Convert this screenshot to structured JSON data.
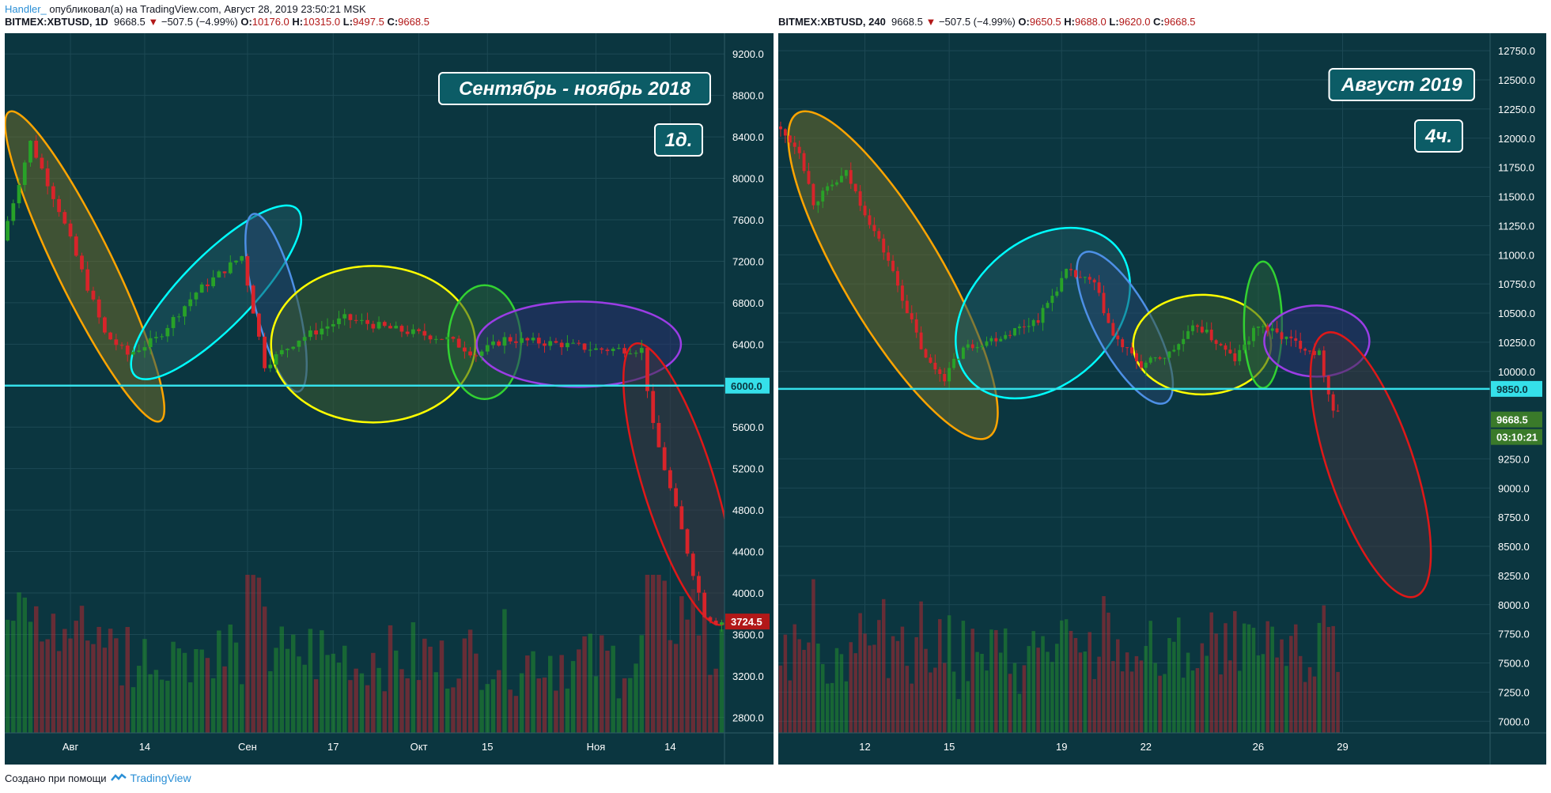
{
  "top_line": {
    "author": "Handler_",
    "text": " опубликовал(а) на TradingView.com, Август 28, 2019 23:50:21 MSK"
  },
  "footer": {
    "text": "Создано при помощи",
    "brand": "TradingView"
  },
  "colors": {
    "bg": "#0b3640",
    "grid": "#1d4954",
    "up": "#28a228",
    "down": "#d8242a",
    "level": "#35e0ea",
    "axis_text": "#ffffff"
  },
  "chart_data": [
    {
      "type": "candlestick",
      "header": {
        "symbol": "BITMEX:XBTUSD, 1D",
        "last": "9668.5",
        "change": "−507.5 (−4.99%)",
        "o_label": "O:",
        "o": "10176.0",
        "h_label": "H:",
        "h": "10315.0",
        "l_label": "L:",
        "l": "9497.5",
        "c_label": "C:",
        "c": "9668.5"
      },
      "title": "Сентябрь - ноябрь 2018",
      "timeframe_badge": "1д.",
      "ylim": [
        2650,
        9400
      ],
      "y_ticks": [
        "9200.0",
        "8800.0",
        "8400.0",
        "8000.0",
        "7600.0",
        "7200.0",
        "6800.0",
        "6400.0",
        "6000.0",
        "5600.0",
        "5200.0",
        "4800.0",
        "4400.0",
        "4000.0",
        "3600.0",
        "3200.0",
        "2800.0"
      ],
      "x_ticks": [
        {
          "label": "Авг",
          "i": 11
        },
        {
          "label": "14",
          "i": 24
        },
        {
          "label": "Сен",
          "i": 42
        },
        {
          "label": "17",
          "i": 57
        },
        {
          "label": "Окт",
          "i": 72
        },
        {
          "label": "15",
          "i": 84
        },
        {
          "label": "Ноя",
          "i": 103
        },
        {
          "label": "14",
          "i": 116
        }
      ],
      "n_candles": 126,
      "start_price": 7400,
      "anchors": [
        [
          0,
          7400
        ],
        [
          5,
          8350
        ],
        [
          10,
          7700
        ],
        [
          18,
          6500
        ],
        [
          22,
          6300
        ],
        [
          27,
          6450
        ],
        [
          34,
          6900
        ],
        [
          42,
          7250
        ],
        [
          46,
          6200
        ],
        [
          52,
          6450
        ],
        [
          60,
          6650
        ],
        [
          68,
          6550
        ],
        [
          78,
          6450
        ],
        [
          83,
          6300
        ],
        [
          88,
          6450
        ],
        [
          98,
          6400
        ],
        [
          104,
          6350
        ],
        [
          112,
          6350
        ],
        [
          114,
          5600
        ],
        [
          120,
          4400
        ],
        [
          123,
          3800
        ],
        [
          125,
          3724
        ]
      ],
      "horizontal_line": {
        "value": 6000,
        "label": "6000.0"
      },
      "last_price_label": {
        "value": 3724.5,
        "label": "3724.5"
      },
      "ellipses": [
        {
          "color": "orange",
          "fill": "#6b6a2a",
          "from": [
            2,
            8450
          ],
          "to": [
            25,
            5850
          ],
          "width": 4
        },
        {
          "color": "cyan",
          "fill": "#1f5760",
          "from": [
            25,
            6250
          ],
          "to": [
            48,
            7550
          ],
          "width": 5
        },
        {
          "color": "#4d90e6",
          "fill": "#24456b",
          "from": [
            44,
            7450
          ],
          "to": [
            50,
            6150
          ],
          "width": 3
        },
        {
          "color": "yellow",
          "fill": "#3d5a2e",
          "from": [
            50,
            6400
          ],
          "to": [
            78,
            6400
          ],
          "width": 11
        },
        {
          "color": "#32d232",
          "fill": "#285c38",
          "from": [
            81,
            6420
          ],
          "to": [
            86,
            6420
          ],
          "width": 8
        },
        {
          "color": "#9b3de5",
          "fill": "#2a2f6b",
          "from": [
            86,
            6400
          ],
          "to": [
            114,
            6400
          ],
          "width": 6
        },
        {
          "color": "#e01818",
          "fill": "#3d3440",
          "from": [
            111,
            6200
          ],
          "to": [
            124,
            3900
          ],
          "width": 5
        }
      ]
    },
    {
      "type": "candlestick",
      "header": {
        "symbol": "BITMEX:XBTUSD, 240",
        "last": "9668.5",
        "change": "−507.5 (−4.99%)",
        "o_label": "O:",
        "o": "9650.5",
        "h_label": "H:",
        "h": "9688.0",
        "l_label": "L:",
        "l": "9620.0",
        "c_label": "C:",
        "c": "9668.5"
      },
      "title": "Август 2019",
      "timeframe_badge": "4ч.",
      "ylim": [
        6900,
        12900
      ],
      "y_ticks": [
        "12750.0",
        "12500.0",
        "12250.0",
        "12000.0",
        "11750.0",
        "11500.0",
        "11250.0",
        "11000.0",
        "10750.0",
        "10500.0",
        "10250.0",
        "10000.0",
        "9250.0",
        "9000.0",
        "8750.0",
        "8500.0",
        "8250.0",
        "8000.0",
        "7750.0",
        "7500.0",
        "7250.0",
        "7000.0"
      ],
      "x_ticks": [
        {
          "label": "12",
          "i": 18
        },
        {
          "label": "15",
          "i": 36
        },
        {
          "label": "19",
          "i": 60
        },
        {
          "label": "22",
          "i": 78
        },
        {
          "label": "26",
          "i": 102
        },
        {
          "label": "29",
          "i": 120
        }
      ],
      "n_candles": 120,
      "start_price": 12100,
      "anchors": [
        [
          0,
          12100
        ],
        [
          5,
          11900
        ],
        [
          8,
          11450
        ],
        [
          15,
          11700
        ],
        [
          24,
          10950
        ],
        [
          32,
          10100
        ],
        [
          36,
          9950
        ],
        [
          40,
          10200
        ],
        [
          48,
          10300
        ],
        [
          56,
          10450
        ],
        [
          62,
          10850
        ],
        [
          68,
          10750
        ],
        [
          72,
          10300
        ],
        [
          78,
          10050
        ],
        [
          84,
          10150
        ],
        [
          90,
          10400
        ],
        [
          98,
          10100
        ],
        [
          103,
          10400
        ],
        [
          108,
          10300
        ],
        [
          116,
          10150
        ],
        [
          119,
          9668
        ]
      ],
      "horizontal_line": {
        "value": 9850,
        "label": "9850.0"
      },
      "last_price_label": {
        "value": 9668.5,
        "label": "9668.5"
      },
      "countdown": "03:10:21",
      "ellipses": [
        {
          "color": "orange",
          "fill": "#6b6a2a",
          "from": [
            6,
            12050
          ],
          "to": [
            42,
            9600
          ],
          "width": 7
        },
        {
          "color": "cyan",
          "fill": "#1f5760",
          "from": [
            44,
            10050
          ],
          "to": [
            68,
            10950
          ],
          "width": 10
        },
        {
          "color": "#4d90e6",
          "fill": "#24456b",
          "from": [
            67,
            10850
          ],
          "to": [
            80,
            9900
          ],
          "width": 4
        },
        {
          "color": "yellow",
          "fill": "#3d5a2e",
          "from": [
            80,
            10230
          ],
          "to": [
            100,
            10230
          ],
          "width": 7
        },
        {
          "color": "#32d232",
          "fill": "#285c38",
          "from": [
            103,
            10400
          ],
          "to": [
            103,
            10400
          ],
          "width": 6,
          "h": 10
        },
        {
          "color": "#9b3de5",
          "fill": "#2a2f6b",
          "from": [
            108,
            10260
          ],
          "to": [
            121,
            10260
          ],
          "width": 5
        },
        {
          "color": "#e01818",
          "fill": "#3d3440",
          "from": [
            118,
            10150
          ],
          "to": [
            134,
            8250
          ],
          "width": 6
        }
      ]
    }
  ]
}
